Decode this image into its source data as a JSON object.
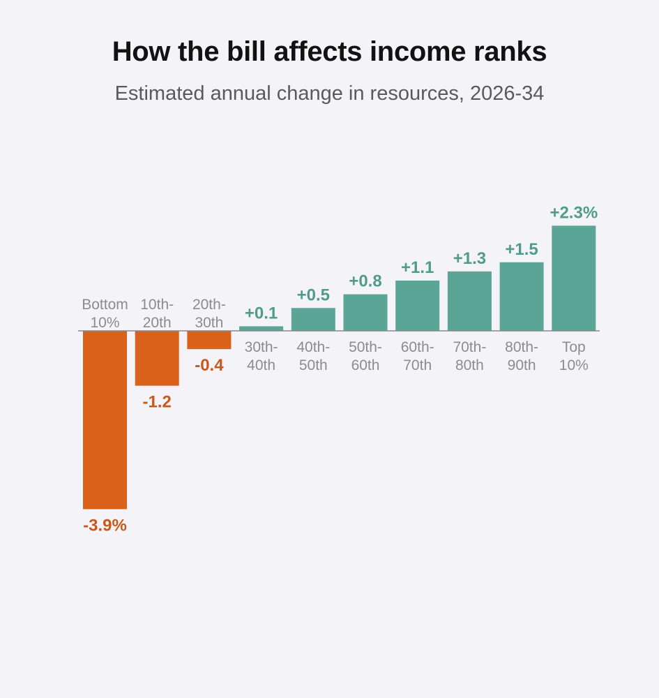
{
  "chart_data": {
    "type": "bar",
    "title": "How the bill affects income ranks",
    "subtitle": "Estimated annual change in resources, 2026-34",
    "categories": [
      [
        "Bottom",
        "10%"
      ],
      [
        "10th-",
        "20th"
      ],
      [
        "20th-",
        "30th"
      ],
      [
        "30th-",
        "40th"
      ],
      [
        "40th-",
        "50th"
      ],
      [
        "50th-",
        "60th"
      ],
      [
        "60th-",
        "70th"
      ],
      [
        "70th-",
        "80th"
      ],
      [
        "80th-",
        "90th"
      ],
      [
        "Top",
        "10%"
      ]
    ],
    "values": [
      -3.9,
      -1.2,
      -0.4,
      0.1,
      0.5,
      0.8,
      1.1,
      1.3,
      1.5,
      2.3
    ],
    "value_labels": [
      "-3.9%",
      "-1.2",
      "-0.4",
      "+0.1",
      "+0.5",
      "+0.8",
      "+1.1",
      "+1.3",
      "+1.5",
      "+2.3%"
    ],
    "ylim": [
      -3.9,
      2.3
    ],
    "xlabel": "",
    "ylabel": "",
    "colors": {
      "negative": "#d9611a",
      "positive": "#5aa595",
      "negative_text": "#c9581a",
      "positive_text": "#4f9c8c",
      "axis": "#888888"
    }
  }
}
